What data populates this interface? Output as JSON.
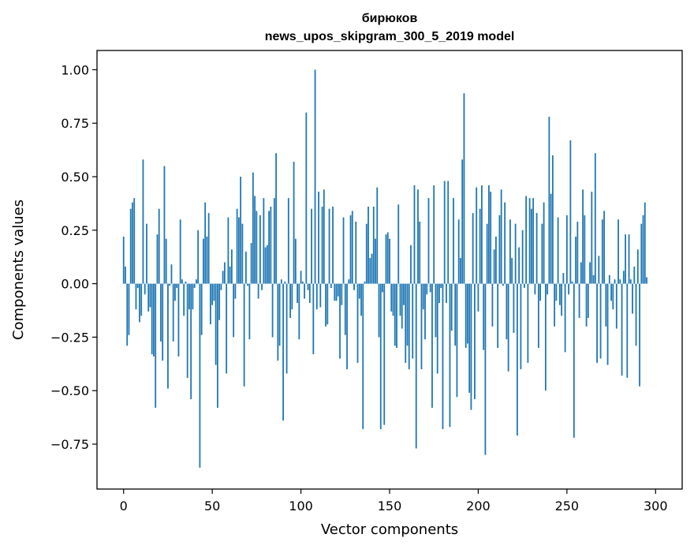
{
  "chart_data": {
    "type": "bar",
    "title": "бирюков",
    "subtitle": "news_upos_skipgram_300_5_2019 model",
    "xlabel": "Vector components",
    "ylabel": "Components values",
    "xlim": [
      -15,
      315
    ],
    "ylim": [
      -0.96,
      1.09
    ],
    "xticks": [
      0,
      50,
      100,
      150,
      200,
      250,
      300
    ],
    "xtick_labels": [
      "0",
      "50",
      "100",
      "150",
      "200",
      "250",
      "300"
    ],
    "yticks": [
      1.0,
      0.75,
      0.5,
      0.25,
      0.0,
      -0.25,
      -0.5,
      -0.75
    ],
    "ytick_labels": [
      "1.00",
      "0.75",
      "0.50",
      "0.25",
      "0.00",
      "−0.25",
      "−0.50",
      "−0.75"
    ],
    "grid": false,
    "color": "#1f77b4",
    "values": [
      0.22,
      0.08,
      -0.29,
      -0.24,
      0.35,
      0.38,
      0.4,
      -0.12,
      -0.02,
      -0.18,
      -0.15,
      0.58,
      -0.05,
      0.28,
      -0.13,
      -0.11,
      -0.33,
      -0.34,
      -0.58,
      0.23,
      0.35,
      -0.27,
      -0.36,
      0.55,
      0.21,
      -0.49,
      -0.01,
      0.09,
      -0.27,
      -0.08,
      -0.02,
      -0.34,
      0.3,
      0.02,
      -0.15,
      0.01,
      -0.44,
      -0.12,
      -0.54,
      -0.12,
      -0.02,
      0.02,
      0.25,
      -0.86,
      -0.24,
      0.21,
      0.38,
      0.22,
      0.33,
      -0.19,
      -0.1,
      -0.08,
      -0.38,
      -0.58,
      -0.17,
      -0.03,
      0.06,
      0.1,
      -0.42,
      0.31,
      0.08,
      0.16,
      -0.25,
      -0.07,
      0.35,
      0.31,
      0.5,
      0.28,
      -0.48,
      0.15,
      -0.01,
      -0.26,
      0.19,
      0.52,
      0.41,
      0.34,
      -0.07,
      0.32,
      -0.03,
      0.4,
      0.17,
      0.18,
      0.34,
      0.36,
      -0.25,
      0.4,
      0.61,
      -0.36,
      -0.29,
      0.02,
      -0.64,
      0.01,
      -0.42,
      0.4,
      -0.16,
      -0.12,
      0.57,
      0.21,
      -0.09,
      -0.26,
      0.06,
      0.01,
      -0.07,
      0.8,
      -0.03,
      -0.09,
      0.35,
      -0.33,
      1.0,
      -0.12,
      0.43,
      -0.11,
      0.36,
      0.44,
      -0.2,
      -0.19,
      0.35,
      -0.02,
      0.36,
      -0.08,
      -0.08,
      -0.06,
      -0.35,
      -0.1,
      0.31,
      -0.24,
      -0.4,
      0.02,
      0.32,
      0.34,
      -0.03,
      0.29,
      -0.37,
      -0.07,
      -0.15,
      -0.68,
      0.01,
      0.28,
      0.36,
      0.12,
      0.14,
      0.36,
      0.21,
      0.45,
      -0.25,
      -0.68,
      -0.04,
      -0.66,
      0.23,
      0.24,
      0.21,
      -0.13,
      -0.15,
      -0.29,
      -0.3,
      0.37,
      -0.15,
      -0.21,
      -0.1,
      -0.37,
      -0.29,
      -0.4,
      0.18,
      -0.35,
      0.46,
      -0.77,
      0.44,
      0.29,
      -0.4,
      -0.12,
      -0.26,
      -0.05,
      0.4,
      -0.04,
      -0.58,
      0.46,
      -0.25,
      -0.42,
      -0.09,
      -0.02,
      -0.68,
      0.48,
      -0.09,
      0.48,
      -0.67,
      -0.22,
      0.4,
      -0.29,
      -0.53,
      0.3,
      0.12,
      0.58,
      0.89,
      -0.3,
      -0.28,
      -0.51,
      -0.59,
      0.33,
      -0.54,
      0.45,
      -0.13,
      0.35,
      0.46,
      -0.31,
      -0.8,
      0.28,
      0.46,
      0.43,
      -0.2,
      0.16,
      0.22,
      -0.3,
      0.32,
      0.44,
      -0.01,
      0.38,
      -0.26,
      -0.41,
      0.3,
      0.12,
      -0.23,
      0.28,
      -0.71,
      0.17,
      -0.4,
      0.25,
      -0.02,
      0.41,
      -0.37,
      0.4,
      0.35,
      0.4,
      -0.05,
      0.33,
      -0.3,
      -0.08,
      0.28,
      0.38,
      -0.5,
      -0.05,
      0.78,
      0.42,
      0.6,
      -0.2,
      -0.08,
      0.31,
      -0.1,
      -0.15,
      0.05,
      -0.32,
      0.32,
      -0.05,
      0.67,
      0.01,
      -0.72,
      0.22,
      0.29,
      -0.16,
      0.1,
      0.44,
      0.32,
      -0.2,
      -0.16,
      0.1,
      0.43,
      0.04,
      0.61,
      -0.37,
      0.13,
      -0.35,
      0.3,
      0.34,
      -0.2,
      -0.38,
      0.04,
      -0.08,
      -0.12,
      0.02,
      -0.21,
      0.3,
      0.02,
      -0.43,
      0.06,
      0.23,
      -0.44,
      0.23,
      0.02,
      -0.14,
      0.08,
      -0.29,
      0.16,
      -0.48,
      0.28,
      0.32,
      0.38,
      0.03
    ]
  }
}
